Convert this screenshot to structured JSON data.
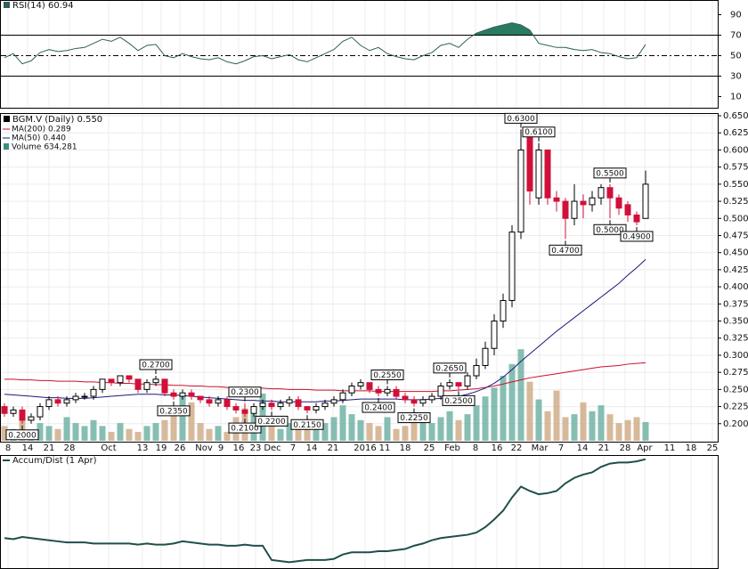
{
  "chart_data": {
    "type": "candlestick",
    "title": "BGM.V (Daily) 0.550",
    "open": [
      0.225,
      0.215,
      0.22,
      0.205,
      0.21,
      0.225,
      0.235,
      0.23,
      0.235,
      0.24,
      0.24,
      0.25,
      0.265,
      0.26,
      0.27,
      0.265,
      0.25,
      0.26,
      0.265,
      0.245,
      0.24,
      0.245,
      0.24,
      0.235,
      0.23,
      0.235,
      0.225,
      0.22,
      0.215,
      0.225,
      0.23,
      0.225,
      0.23,
      0.235,
      0.225,
      0.22,
      0.225,
      0.23,
      0.235,
      0.245,
      0.255,
      0.26,
      0.25,
      0.245,
      0.25,
      0.24,
      0.235,
      0.23,
      0.235,
      0.24,
      0.255,
      0.26,
      0.255,
      0.27,
      0.285,
      0.31,
      0.35,
      0.38,
      0.48,
      0.62,
      0.53,
      0.6,
      0.53,
      0.525,
      0.5,
      0.525,
      0.52,
      0.53,
      0.545,
      0.53,
      0.52,
      0.505,
      0.5
    ],
    "high": [
      0.23,
      0.225,
      0.225,
      0.215,
      0.23,
      0.24,
      0.24,
      0.24,
      0.245,
      0.245,
      0.255,
      0.265,
      0.265,
      0.27,
      0.27,
      0.265,
      0.265,
      0.27,
      0.265,
      0.25,
      0.25,
      0.25,
      0.24,
      0.24,
      0.24,
      0.24,
      0.23,
      0.23,
      0.23,
      0.235,
      0.235,
      0.235,
      0.24,
      0.24,
      0.225,
      0.23,
      0.235,
      0.24,
      0.25,
      0.26,
      0.265,
      0.26,
      0.255,
      0.255,
      0.255,
      0.245,
      0.24,
      0.24,
      0.245,
      0.26,
      0.265,
      0.26,
      0.275,
      0.295,
      0.32,
      0.36,
      0.39,
      0.49,
      0.63,
      0.62,
      0.61,
      0.6,
      0.54,
      0.53,
      0.55,
      0.535,
      0.54,
      0.55,
      0.55,
      0.535,
      0.525,
      0.51,
      0.57
    ],
    "low": [
      0.21,
      0.21,
      0.2,
      0.2,
      0.205,
      0.22,
      0.225,
      0.225,
      0.23,
      0.235,
      0.235,
      0.245,
      0.255,
      0.255,
      0.26,
      0.245,
      0.245,
      0.255,
      0.24,
      0.235,
      0.235,
      0.235,
      0.23,
      0.225,
      0.225,
      0.22,
      0.215,
      0.21,
      0.21,
      0.22,
      0.22,
      0.22,
      0.225,
      0.22,
      0.215,
      0.215,
      0.22,
      0.225,
      0.23,
      0.24,
      0.25,
      0.245,
      0.24,
      0.24,
      0.235,
      0.23,
      0.225,
      0.225,
      0.23,
      0.235,
      0.25,
      0.25,
      0.25,
      0.265,
      0.28,
      0.3,
      0.34,
      0.37,
      0.47,
      0.52,
      0.52,
      0.52,
      0.51,
      0.47,
      0.49,
      0.5,
      0.51,
      0.52,
      0.5,
      0.505,
      0.495,
      0.49,
      0.5
    ],
    "close": [
      0.215,
      0.22,
      0.205,
      0.21,
      0.225,
      0.235,
      0.23,
      0.235,
      0.24,
      0.24,
      0.25,
      0.265,
      0.26,
      0.27,
      0.265,
      0.25,
      0.26,
      0.265,
      0.245,
      0.24,
      0.245,
      0.24,
      0.235,
      0.23,
      0.235,
      0.225,
      0.22,
      0.215,
      0.225,
      0.23,
      0.225,
      0.23,
      0.235,
      0.225,
      0.22,
      0.225,
      0.23,
      0.235,
      0.245,
      0.255,
      0.26,
      0.25,
      0.245,
      0.25,
      0.24,
      0.235,
      0.23,
      0.235,
      0.24,
      0.255,
      0.26,
      0.255,
      0.27,
      0.285,
      0.31,
      0.35,
      0.38,
      0.48,
      0.6,
      0.54,
      0.6,
      0.53,
      0.525,
      0.5,
      0.525,
      0.52,
      0.53,
      0.545,
      0.53,
      0.515,
      0.505,
      0.495,
      0.55
    ],
    "up_color": "#ffffff",
    "down_color": "#d0103a",
    "ylim": [
      0.175,
      0.65
    ],
    "yticks": [
      {
        "value": 0.2,
        "label": "0.200"
      },
      {
        "value": 0.225,
        "label": "0.225"
      },
      {
        "value": 0.25,
        "label": "0.250"
      },
      {
        "value": 0.275,
        "label": "0.275"
      },
      {
        "value": 0.3,
        "label": "0.300"
      },
      {
        "value": 0.325,
        "label": "0.325"
      },
      {
        "value": 0.35,
        "label": "0.350"
      },
      {
        "value": 0.375,
        "label": "0.375"
      },
      {
        "value": 0.4,
        "label": "0.400"
      },
      {
        "value": 0.425,
        "label": "0.425"
      },
      {
        "value": 0.45,
        "label": "0.450"
      },
      {
        "value": 0.475,
        "label": "0.475"
      },
      {
        "value": 0.5,
        "label": "0.500"
      },
      {
        "value": 0.525,
        "label": "0.525"
      },
      {
        "value": 0.55,
        "label": "0.550"
      },
      {
        "value": 0.575,
        "label": "0.575"
      },
      {
        "value": 0.6,
        "label": "0.600"
      },
      {
        "value": 0.625,
        "label": "0.625"
      },
      {
        "value": 0.65,
        "label": "0.650"
      }
    ],
    "grid": true,
    "date_labels": [
      "8",
      "14",
      "21",
      "28",
      "Oct",
      "13",
      "19",
      "26",
      "Nov",
      "9",
      "16",
      "23",
      "Dec",
      "7",
      "14",
      "21",
      "2016",
      "11",
      "18",
      "25",
      "Feb",
      "8",
      "16",
      "22",
      "Mar",
      "7",
      "14",
      "21",
      "28",
      "Apr",
      "11",
      "18",
      "25"
    ],
    "series": [
      {
        "name": "MA(200) 0.289",
        "color": "#c8102e",
        "values": [
          0.265,
          0.265,
          0.264,
          0.264,
          0.263,
          0.263,
          0.262,
          0.262,
          0.262,
          0.261,
          0.261,
          0.26,
          0.26,
          0.259,
          0.259,
          0.258,
          0.258,
          0.257,
          0.257,
          0.256,
          0.256,
          0.255,
          0.255,
          0.254,
          0.254,
          0.253,
          0.253,
          0.252,
          0.252,
          0.252,
          0.251,
          0.251,
          0.25,
          0.25,
          0.25,
          0.249,
          0.249,
          0.249,
          0.248,
          0.248,
          0.248,
          0.248,
          0.247,
          0.247,
          0.247,
          0.247,
          0.247,
          0.247,
          0.247,
          0.248,
          0.248,
          0.249,
          0.25,
          0.251,
          0.253,
          0.255,
          0.258,
          0.261,
          0.264,
          0.267,
          0.269,
          0.271,
          0.273,
          0.275,
          0.277,
          0.279,
          0.281,
          0.283,
          0.284,
          0.285,
          0.287,
          0.288,
          0.289
        ]
      },
      {
        "name": "MA(50) 0.440",
        "color": "#1a1a7a",
        "values": [
          0.243,
          0.242,
          0.241,
          0.24,
          0.239,
          0.238,
          0.238,
          0.237,
          0.237,
          0.237,
          0.238,
          0.239,
          0.24,
          0.241,
          0.242,
          0.243,
          0.243,
          0.243,
          0.242,
          0.242,
          0.241,
          0.24,
          0.239,
          0.238,
          0.237,
          0.236,
          0.235,
          0.234,
          0.234,
          0.233,
          0.233,
          0.232,
          0.232,
          0.232,
          0.232,
          0.232,
          0.233,
          0.233,
          0.234,
          0.235,
          0.236,
          0.236,
          0.236,
          0.236,
          0.236,
          0.235,
          0.235,
          0.235,
          0.236,
          0.237,
          0.238,
          0.24,
          0.243,
          0.247,
          0.252,
          0.259,
          0.268,
          0.279,
          0.291,
          0.302,
          0.313,
          0.324,
          0.335,
          0.345,
          0.355,
          0.365,
          0.375,
          0.385,
          0.395,
          0.405,
          0.417,
          0.428,
          0.44
        ]
      }
    ],
    "volume": {
      "name": "Volume 634,281",
      "color": "#3e8e7e",
      "up_color": "#5fa89a",
      "down_color": "#c9a27a",
      "ylim": [
        0,
        6000000
      ],
      "values": [
        500000,
        400000,
        700000,
        300000,
        600000,
        500000,
        400000,
        800000,
        600000,
        500000,
        700000,
        500000,
        300000,
        600000,
        400000,
        300000,
        500000,
        600000,
        700000,
        900000,
        1500000,
        1300000,
        600000,
        400000,
        500000,
        300000,
        800000,
        1100000,
        900000,
        1600000,
        500000,
        400000,
        600000,
        700000,
        500000,
        400000,
        600000,
        800000,
        1200000,
        900000,
        700000,
        600000,
        500000,
        800000,
        400000,
        500000,
        900000,
        700000,
        600000,
        800000,
        1000000,
        700000,
        900000,
        1200000,
        1500000,
        1800000,
        2200000,
        2600000,
        3100000,
        2000000,
        1400000,
        1000000,
        1700000,
        800000,
        900000,
        1300000,
        1000000,
        1200000,
        900000,
        600000,
        700000,
        800000,
        634281
      ]
    },
    "rsi": {
      "name": "RSI(14) 60.94",
      "color": "#2f5f5a",
      "fill_color": "#2a7a62",
      "ylim": [
        0,
        100
      ],
      "yticks": [
        90,
        70,
        50,
        30,
        10
      ],
      "levels": [
        70,
        50,
        30
      ],
      "level_styles": [
        "solid",
        "dashdot",
        "solid"
      ],
      "values": [
        48,
        52,
        42,
        45,
        53,
        56,
        54,
        55,
        57,
        58,
        62,
        66,
        64,
        68,
        62,
        55,
        60,
        61,
        50,
        48,
        52,
        49,
        47,
        46,
        48,
        44,
        42,
        45,
        49,
        50,
        47,
        49,
        51,
        46,
        44,
        48,
        52,
        56,
        64,
        68,
        60,
        55,
        58,
        52,
        49,
        47,
        46,
        50,
        53,
        60,
        62,
        58,
        66,
        72,
        75,
        78,
        80,
        82,
        80,
        75,
        62,
        60,
        58,
        58,
        56,
        55,
        56,
        53,
        52,
        49,
        47,
        48,
        60.94
      ]
    },
    "accum_dist": {
      "name": "Accum/Dist (1 Apr)",
      "color": "#1f4f4a",
      "ylim": [
        0,
        100
      ],
      "values": [
        25,
        24,
        26,
        25,
        24,
        23,
        22,
        21,
        21,
        21,
        20,
        20,
        20,
        20,
        20,
        19,
        20,
        19,
        19,
        20,
        22,
        21,
        20,
        19,
        19,
        18,
        18,
        19,
        18,
        18,
        5,
        4,
        3,
        4,
        5,
        5,
        5,
        6,
        10,
        12,
        12,
        12,
        13,
        13,
        14,
        15,
        18,
        20,
        23,
        25,
        26,
        27,
        28,
        30,
        35,
        42,
        50,
        62,
        72,
        68,
        65,
        66,
        68,
        75,
        80,
        83,
        85,
        90,
        93,
        94,
        94,
        95,
        97
      ]
    },
    "annotations": [
      {
        "label": "0.2000",
        "value": 0.2,
        "index": 2,
        "position": "below"
      },
      {
        "label": "0.2700",
        "value": 0.27,
        "index": 17,
        "position": "above"
      },
      {
        "label": "0.2350",
        "value": 0.235,
        "index": 19,
        "position": "below"
      },
      {
        "label": "0.2300",
        "value": 0.23,
        "index": 27,
        "position": "above"
      },
      {
        "label": "0.2100",
        "value": 0.21,
        "index": 27,
        "position": "below"
      },
      {
        "label": "0.2200",
        "value": 0.22,
        "index": 30,
        "position": "below"
      },
      {
        "label": "0.2150",
        "value": 0.215,
        "index": 34,
        "position": "below"
      },
      {
        "label": "0.2550",
        "value": 0.255,
        "index": 43,
        "position": "above"
      },
      {
        "label": "0.2400",
        "value": 0.24,
        "index": 42,
        "position": "below"
      },
      {
        "label": "0.2250",
        "value": 0.225,
        "index": 46,
        "position": "below"
      },
      {
        "label": "0.2650",
        "value": 0.265,
        "index": 50,
        "position": "above"
      },
      {
        "label": "0.2500",
        "value": 0.25,
        "index": 51,
        "position": "below"
      },
      {
        "label": "0.6300",
        "value": 0.63,
        "index": 58,
        "position": "above"
      },
      {
        "label": "0.6100",
        "value": 0.61,
        "index": 60,
        "position": "above"
      },
      {
        "label": "0.5500",
        "value": 0.55,
        "index": 68,
        "position": "above"
      },
      {
        "label": "0.5000",
        "value": 0.5,
        "index": 68,
        "position": "below"
      },
      {
        "label": "0.4700",
        "value": 0.47,
        "index": 63,
        "position": "below"
      },
      {
        "label": "0.4900",
        "value": 0.49,
        "index": 71,
        "position": "below"
      }
    ]
  }
}
